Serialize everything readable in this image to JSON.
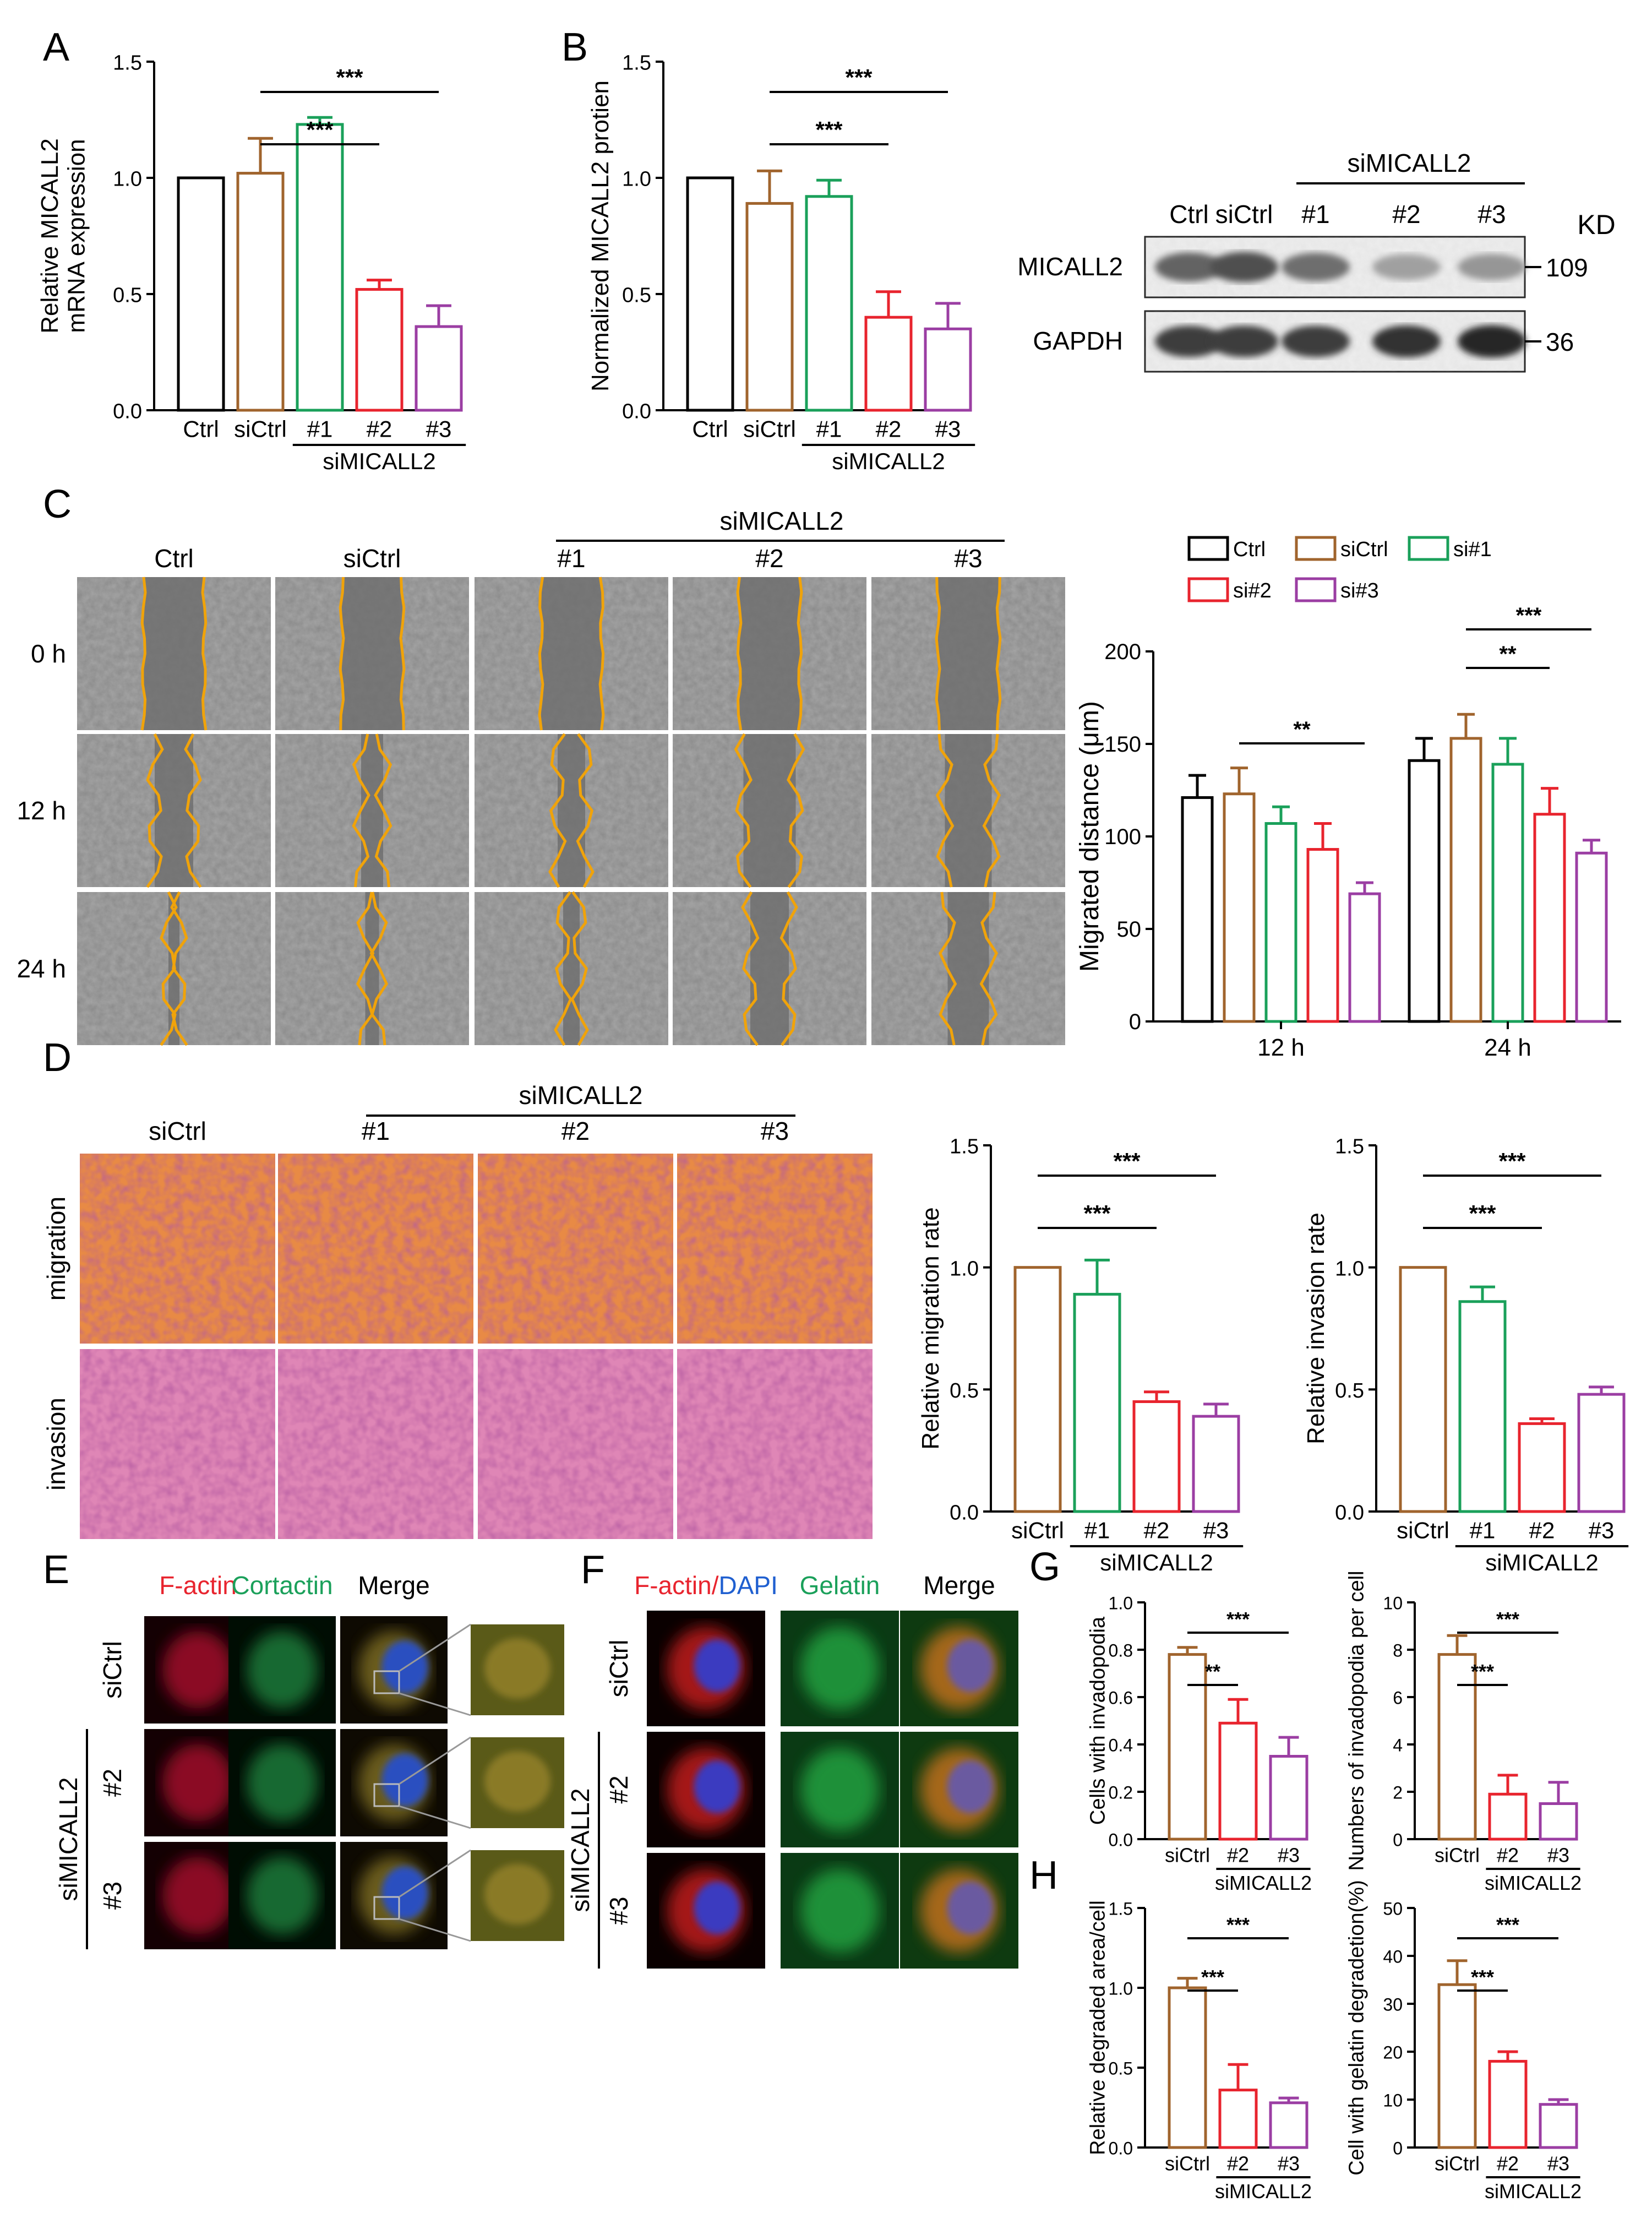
{
  "panel_labels": {
    "A": "A",
    "B": "B",
    "C": "C",
    "D": "D",
    "E": "E",
    "F": "F",
    "G": "G",
    "H": "H"
  },
  "colors": {
    "Ctrl": "#000000",
    "siCtrl": "#a0642d",
    "si1": "#1aa05a",
    "si2": "#e8242e",
    "si3": "#9b3ea3",
    "contour": "#f0a30a"
  },
  "chart_data": [
    {
      "id": "A",
      "type": "bar",
      "ylabel": "Relative MICALL2\nmRNA expression",
      "ylim": [
        0,
        1.5
      ],
      "yticks": [
        "0.0",
        "0.5",
        "1.0",
        "1.5"
      ],
      "categories": [
        "Ctrl",
        "siCtrl",
        "#1",
        "#2",
        "#3"
      ],
      "values": [
        1.0,
        1.02,
        1.23,
        0.52,
        0.36
      ],
      "errors": [
        0,
        0.15,
        0.03,
        0.04,
        0.09
      ],
      "color_keys": [
        "Ctrl",
        "siCtrl",
        "si1",
        "si2",
        "si3"
      ],
      "group_label": "siMICALL2",
      "group_from": 2,
      "sig": [
        {
          "from": 1,
          "to": 3,
          "label": "***"
        },
        {
          "from": 1,
          "to": 4,
          "label": "***"
        }
      ]
    },
    {
      "id": "B",
      "type": "bar",
      "ylabel": "Normalized MICALL2 protien",
      "ylim": [
        0,
        1.5
      ],
      "yticks": [
        "0.0",
        "0.5",
        "1.0",
        "1.5"
      ],
      "categories": [
        "Ctrl",
        "siCtrl",
        "#1",
        "#2",
        "#3"
      ],
      "values": [
        1.0,
        0.89,
        0.92,
        0.4,
        0.35
      ],
      "errors": [
        0,
        0.14,
        0.07,
        0.11,
        0.11
      ],
      "color_keys": [
        "Ctrl",
        "siCtrl",
        "si1",
        "si2",
        "si3"
      ],
      "group_label": "siMICALL2",
      "group_from": 2,
      "sig": [
        {
          "from": 1,
          "to": 3,
          "label": "***"
        },
        {
          "from": 1,
          "to": 4,
          "label": "***"
        }
      ]
    },
    {
      "id": "C",
      "type": "bar",
      "ylabel": "Migrated distance (μm)",
      "ylim": [
        0,
        200
      ],
      "yticks": [
        "0",
        "50",
        "100",
        "150",
        "200"
      ],
      "groups": [
        "12 h",
        "24 h"
      ],
      "series": [
        {
          "name": "Ctrl",
          "color_key": "Ctrl",
          "values": [
            121,
            141
          ],
          "errors": [
            12,
            12
          ]
        },
        {
          "name": "siCtrl",
          "color_key": "siCtrl",
          "values": [
            123,
            153
          ],
          "errors": [
            14,
            13
          ]
        },
        {
          "name": "si#1",
          "color_key": "si1",
          "values": [
            107,
            139
          ],
          "errors": [
            9,
            14
          ]
        },
        {
          "name": "si#2",
          "color_key": "si2",
          "values": [
            93,
            112
          ],
          "errors": [
            14,
            14
          ]
        },
        {
          "name": "si#3",
          "color_key": "si3",
          "values": [
            69,
            91
          ],
          "errors": [
            6,
            7
          ]
        }
      ],
      "sig": [
        {
          "group": 0,
          "from": 1,
          "to": 4,
          "label": "**"
        },
        {
          "group": 1,
          "from": 1,
          "to": 3,
          "label": "**"
        },
        {
          "group": 1,
          "from": 1,
          "to": 4,
          "label": "***"
        }
      ]
    },
    {
      "id": "D1",
      "type": "bar",
      "ylabel": "Relative migration rate",
      "ylim": [
        0,
        1.5
      ],
      "yticks": [
        "0.0",
        "0.5",
        "1.0",
        "1.5"
      ],
      "categories": [
        "siCtrl",
        "#1",
        "#2",
        "#3"
      ],
      "values": [
        1.0,
        0.89,
        0.45,
        0.39
      ],
      "errors": [
        0,
        0.14,
        0.04,
        0.05
      ],
      "color_keys": [
        "siCtrl",
        "si1",
        "si2",
        "si3"
      ],
      "group_label": "siMICALL2",
      "group_from": 1,
      "sig": [
        {
          "from": 0,
          "to": 2,
          "label": "***"
        },
        {
          "from": 0,
          "to": 3,
          "label": "***"
        }
      ]
    },
    {
      "id": "D2",
      "type": "bar",
      "ylabel": "Relative invasion rate",
      "ylim": [
        0,
        1.5
      ],
      "yticks": [
        "0.0",
        "0.5",
        "1.0",
        "1.5"
      ],
      "categories": [
        "siCtrl",
        "#1",
        "#2",
        "#3"
      ],
      "values": [
        1.0,
        0.86,
        0.36,
        0.48
      ],
      "errors": [
        0,
        0.06,
        0.02,
        0.03
      ],
      "color_keys": [
        "siCtrl",
        "si1",
        "si2",
        "si3"
      ],
      "group_label": "siMICALL2",
      "group_from": 1,
      "sig": [
        {
          "from": 0,
          "to": 2,
          "label": "***"
        },
        {
          "from": 0,
          "to": 3,
          "label": "***"
        }
      ]
    },
    {
      "id": "G1",
      "type": "bar",
      "ylabel": "Cells  with invadopodia",
      "ylim": [
        0,
        1.0
      ],
      "yticks": [
        "0.0",
        "0.2",
        "0.4",
        "0.6",
        "0.8",
        "1.0"
      ],
      "categories": [
        "siCtrl",
        "#2",
        "#3"
      ],
      "values": [
        0.78,
        0.49,
        0.35
      ],
      "errors": [
        0.03,
        0.1,
        0.08
      ],
      "color_keys": [
        "siCtrl",
        "si2",
        "si3"
      ],
      "group_label": "siMICALL2",
      "group_from": 1,
      "sig": [
        {
          "from": 0,
          "to": 1,
          "label": "**"
        },
        {
          "from": 0,
          "to": 2,
          "label": "***"
        }
      ]
    },
    {
      "id": "G2",
      "type": "bar",
      "ylabel": "Numbers of invadopodia per cell",
      "ylim": [
        0,
        10
      ],
      "yticks": [
        "0",
        "2",
        "4",
        "6",
        "8",
        "10"
      ],
      "categories": [
        "siCtrl",
        "#2",
        "#3"
      ],
      "values": [
        7.8,
        1.9,
        1.5
      ],
      "errors": [
        0.8,
        0.8,
        0.9
      ],
      "color_keys": [
        "siCtrl",
        "si2",
        "si3"
      ],
      "group_label": "siMICALL2",
      "group_from": 1,
      "sig": [
        {
          "from": 0,
          "to": 1,
          "label": "***"
        },
        {
          "from": 0,
          "to": 2,
          "label": "***"
        }
      ]
    },
    {
      "id": "H1",
      "type": "bar",
      "ylabel": "Relative degraded area/cell",
      "ylim": [
        0,
        1.5
      ],
      "yticks": [
        "0.0",
        "0.5",
        "1.0",
        "1.5"
      ],
      "categories": [
        "siCtrl",
        "#2",
        "#3"
      ],
      "values": [
        1.0,
        0.36,
        0.28
      ],
      "errors": [
        0.06,
        0.16,
        0.03
      ],
      "color_keys": [
        "siCtrl",
        "si2",
        "si3"
      ],
      "group_label": "siMICALL2",
      "group_from": 1,
      "sig": [
        {
          "from": 0,
          "to": 1,
          "label": "***"
        },
        {
          "from": 0,
          "to": 2,
          "label": "***"
        }
      ]
    },
    {
      "id": "H2",
      "type": "bar",
      "ylabel": "Cell with gelatin degradetion(%)",
      "ylim": [
        0,
        50
      ],
      "yticks": [
        "0",
        "10",
        "20",
        "30",
        "40",
        "50"
      ],
      "categories": [
        "siCtrl",
        "#2",
        "#3"
      ],
      "values": [
        34,
        18,
        9
      ],
      "errors": [
        5,
        2,
        1
      ],
      "color_keys": [
        "siCtrl",
        "si2",
        "si3"
      ],
      "group_label": "siMICALL2",
      "group_from": 1,
      "sig": [
        {
          "from": 0,
          "to": 1,
          "label": "***"
        },
        {
          "from": 0,
          "to": 2,
          "label": "***"
        }
      ]
    }
  ],
  "blot": {
    "header_group": "siMICALL2",
    "lanes": [
      "Ctrl",
      "siCtrl",
      "#1",
      "#2",
      "#3"
    ],
    "kd": "KD",
    "rows": [
      {
        "name": "MICALL2",
        "kd": "109",
        "intensity": [
          0.65,
          0.75,
          0.6,
          0.35,
          0.4
        ]
      },
      {
        "name": "GAPDH",
        "kd": "36",
        "intensity": [
          0.85,
          0.85,
          0.85,
          0.9,
          0.95
        ]
      }
    ]
  },
  "wound": {
    "group": "siMICALL2",
    "cols": [
      "Ctrl",
      "siCtrl",
      "#1",
      "#2",
      "#3"
    ],
    "rows": [
      "0 h",
      "12 h",
      "24 h"
    ],
    "legend": [
      "Ctrl",
      "siCtrl",
      "si#1",
      "si#2",
      "si#3"
    ]
  },
  "transwell": {
    "group": "siMICALL2",
    "cols": [
      "siCtrl",
      "#1",
      "#2",
      "#3"
    ],
    "rows": [
      "migration",
      "invasion"
    ]
  },
  "E": {
    "cols": [
      {
        "text": "F-actin",
        "color": "#e8242e"
      },
      {
        "text": "Cortactin",
        "color": "#1aa05a"
      },
      {
        "text": "Merge",
        "color": "#000000"
      }
    ],
    "rows": [
      "siCtrl",
      "#2",
      "#3"
    ],
    "group": "siMICALL2"
  },
  "F": {
    "cols": [
      {
        "text": "F-actin/",
        "color": "#e8242e",
        "extra": "DAPI",
        "extra_color": "#1f5fd0"
      },
      {
        "text": "Gelatin",
        "color": "#1aa05a"
      },
      {
        "text": "Merge",
        "color": "#000000"
      }
    ],
    "rows": [
      "siCtrl",
      "#2",
      "#3"
    ],
    "group": "siMICALL2"
  }
}
